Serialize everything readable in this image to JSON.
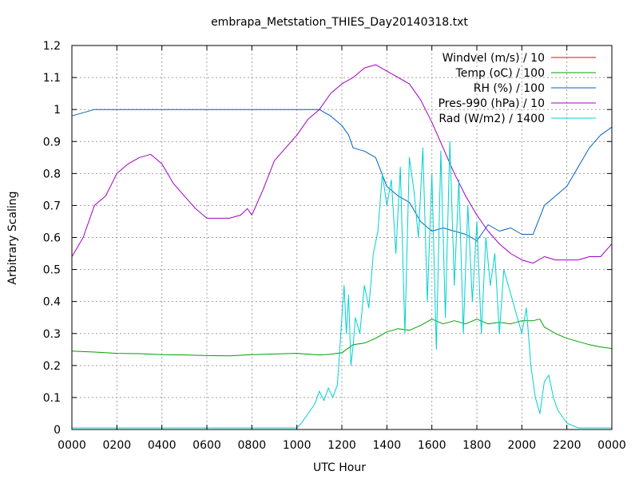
{
  "chart_data": {
    "type": "line",
    "title": "embrapa_Metstation_THIES_Day20140318.txt",
    "xlabel": "UTC Hour",
    "ylabel": "Arbitrary Scaling",
    "xlim": [
      0,
      24
    ],
    "ylim": [
      0,
      1.2
    ],
    "grid": true,
    "legend_position": "top-right",
    "x_ticks": [
      {
        "value": 0,
        "label": "0000"
      },
      {
        "value": 2,
        "label": "0200"
      },
      {
        "value": 4,
        "label": "0400"
      },
      {
        "value": 6,
        "label": "0600"
      },
      {
        "value": 8,
        "label": "0800"
      },
      {
        "value": 10,
        "label": "1000"
      },
      {
        "value": 12,
        "label": "1200"
      },
      {
        "value": 14,
        "label": "1400"
      },
      {
        "value": 16,
        "label": "1600"
      },
      {
        "value": 18,
        "label": "1800"
      },
      {
        "value": 20,
        "label": "2000"
      },
      {
        "value": 22,
        "label": "2200"
      },
      {
        "value": 24,
        "label": "0000"
      }
    ],
    "y_ticks": [
      {
        "value": 0,
        "label": "0"
      },
      {
        "value": 0.1,
        "label": "0.1"
      },
      {
        "value": 0.2,
        "label": "0.2"
      },
      {
        "value": 0.3,
        "label": "0.3"
      },
      {
        "value": 0.4,
        "label": "0.4"
      },
      {
        "value": 0.5,
        "label": "0.5"
      },
      {
        "value": 0.6,
        "label": "0.6"
      },
      {
        "value": 0.7,
        "label": "0.7"
      },
      {
        "value": 0.8,
        "label": "0.8"
      },
      {
        "value": 0.9,
        "label": "0.9"
      },
      {
        "value": 1.0,
        "label": "1"
      },
      {
        "value": 1.1,
        "label": "1.1"
      },
      {
        "value": 1.2,
        "label": "1.2"
      }
    ],
    "series": [
      {
        "name": "Windvel (m/s) / 10",
        "color": "#ff0000",
        "x": [],
        "y": []
      },
      {
        "name": "Temp (oC) / 100",
        "color": "#00a000",
        "x": [
          0,
          1,
          2,
          3,
          4,
          5,
          6,
          7,
          8,
          9,
          10,
          11,
          11.5,
          12,
          12.5,
          13,
          13.5,
          14,
          14.5,
          15,
          15.5,
          16,
          16.5,
          17,
          17.5,
          18,
          18.5,
          19,
          19.5,
          20,
          20.5,
          20.8,
          21,
          21.5,
          22,
          22.5,
          23,
          23.5,
          24
        ],
        "y": [
          0.245,
          0.242,
          0.238,
          0.237,
          0.234,
          0.233,
          0.231,
          0.23,
          0.234,
          0.236,
          0.238,
          0.233,
          0.235,
          0.24,
          0.265,
          0.27,
          0.285,
          0.305,
          0.315,
          0.31,
          0.325,
          0.345,
          0.33,
          0.34,
          0.33,
          0.345,
          0.33,
          0.335,
          0.33,
          0.34,
          0.34,
          0.345,
          0.32,
          0.3,
          0.285,
          0.275,
          0.265,
          0.258,
          0.253
        ]
      },
      {
        "name": "RH (%) / 100",
        "color": "#0060c0",
        "x": [
          0,
          0.5,
          1,
          2,
          4,
          6,
          8,
          10,
          11,
          11.5,
          12,
          12.3,
          12.5,
          13,
          13.5,
          14,
          14.5,
          15,
          15.5,
          16,
          16.5,
          17,
          17.5,
          18,
          18.5,
          19,
          19.5,
          20,
          20.5,
          21,
          21.5,
          22,
          22.5,
          23,
          23.5,
          24
        ],
        "y": [
          0.98,
          0.99,
          1.0,
          1.0,
          1.0,
          1.0,
          1.0,
          1.0,
          1.0,
          0.98,
          0.95,
          0.92,
          0.88,
          0.87,
          0.85,
          0.76,
          0.73,
          0.71,
          0.65,
          0.62,
          0.63,
          0.62,
          0.61,
          0.59,
          0.64,
          0.62,
          0.63,
          0.61,
          0.61,
          0.7,
          0.73,
          0.76,
          0.82,
          0.88,
          0.92,
          0.945
        ]
      },
      {
        "name": "Pres-990 (hPa) / 10",
        "color": "#a000c0",
        "x": [
          0,
          0.5,
          1,
          1.5,
          2,
          2.5,
          3,
          3.5,
          4,
          4.5,
          5,
          5.5,
          6,
          6.5,
          7,
          7.5,
          7.8,
          8,
          8.5,
          9,
          9.5,
          10,
          10.5,
          11,
          11.5,
          12,
          12.5,
          13,
          13.5,
          14,
          14.5,
          15,
          15.5,
          16,
          16.5,
          17,
          17.5,
          18,
          18.5,
          19,
          19.5,
          20,
          20.5,
          21,
          21.5,
          22,
          22.5,
          23,
          23.5,
          24
        ],
        "y": [
          0.54,
          0.6,
          0.7,
          0.73,
          0.8,
          0.83,
          0.85,
          0.86,
          0.83,
          0.77,
          0.73,
          0.69,
          0.66,
          0.66,
          0.66,
          0.67,
          0.69,
          0.67,
          0.75,
          0.84,
          0.88,
          0.92,
          0.97,
          1.0,
          1.05,
          1.08,
          1.1,
          1.13,
          1.14,
          1.12,
          1.1,
          1.08,
          1.03,
          0.96,
          0.88,
          0.8,
          0.73,
          0.67,
          0.62,
          0.58,
          0.55,
          0.53,
          0.52,
          0.54,
          0.53,
          0.53,
          0.53,
          0.54,
          0.54,
          0.58
        ]
      },
      {
        "name": "Rad (W/m2) / 1400",
        "color": "#00d0d0",
        "x": [
          0,
          10,
          10.2,
          10.5,
          10.8,
          11,
          11.2,
          11.4,
          11.6,
          11.8,
          12,
          12.1,
          12.2,
          12.3,
          12.4,
          12.5,
          12.6,
          12.8,
          13,
          13.2,
          13.4,
          13.6,
          13.8,
          14,
          14.2,
          14.4,
          14.6,
          14.8,
          15,
          15.2,
          15.4,
          15.6,
          15.8,
          16,
          16.2,
          16.4,
          16.6,
          16.8,
          17,
          17.2,
          17.4,
          17.6,
          17.8,
          18,
          18.2,
          18.4,
          18.6,
          18.8,
          19,
          19.2,
          19.4,
          19.6,
          19.8,
          20,
          20.2,
          20.4,
          20.6,
          20.8,
          21,
          21.2,
          21.4,
          21.6,
          22,
          22.5,
          23,
          24
        ],
        "y": [
          0.005,
          0.005,
          0.02,
          0.05,
          0.08,
          0.12,
          0.09,
          0.13,
          0.1,
          0.14,
          0.35,
          0.45,
          0.3,
          0.42,
          0.2,
          0.26,
          0.35,
          0.3,
          0.45,
          0.38,
          0.55,
          0.62,
          0.8,
          0.7,
          0.78,
          0.55,
          0.82,
          0.3,
          0.85,
          0.75,
          0.6,
          0.88,
          0.4,
          0.8,
          0.25,
          0.87,
          0.35,
          0.9,
          0.45,
          0.78,
          0.3,
          0.7,
          0.4,
          0.65,
          0.3,
          0.6,
          0.45,
          0.55,
          0.3,
          0.5,
          0.45,
          0.4,
          0.35,
          0.3,
          0.38,
          0.2,
          0.1,
          0.05,
          0.15,
          0.17,
          0.1,
          0.06,
          0.02,
          0.005,
          0.005,
          0.005
        ]
      }
    ]
  }
}
